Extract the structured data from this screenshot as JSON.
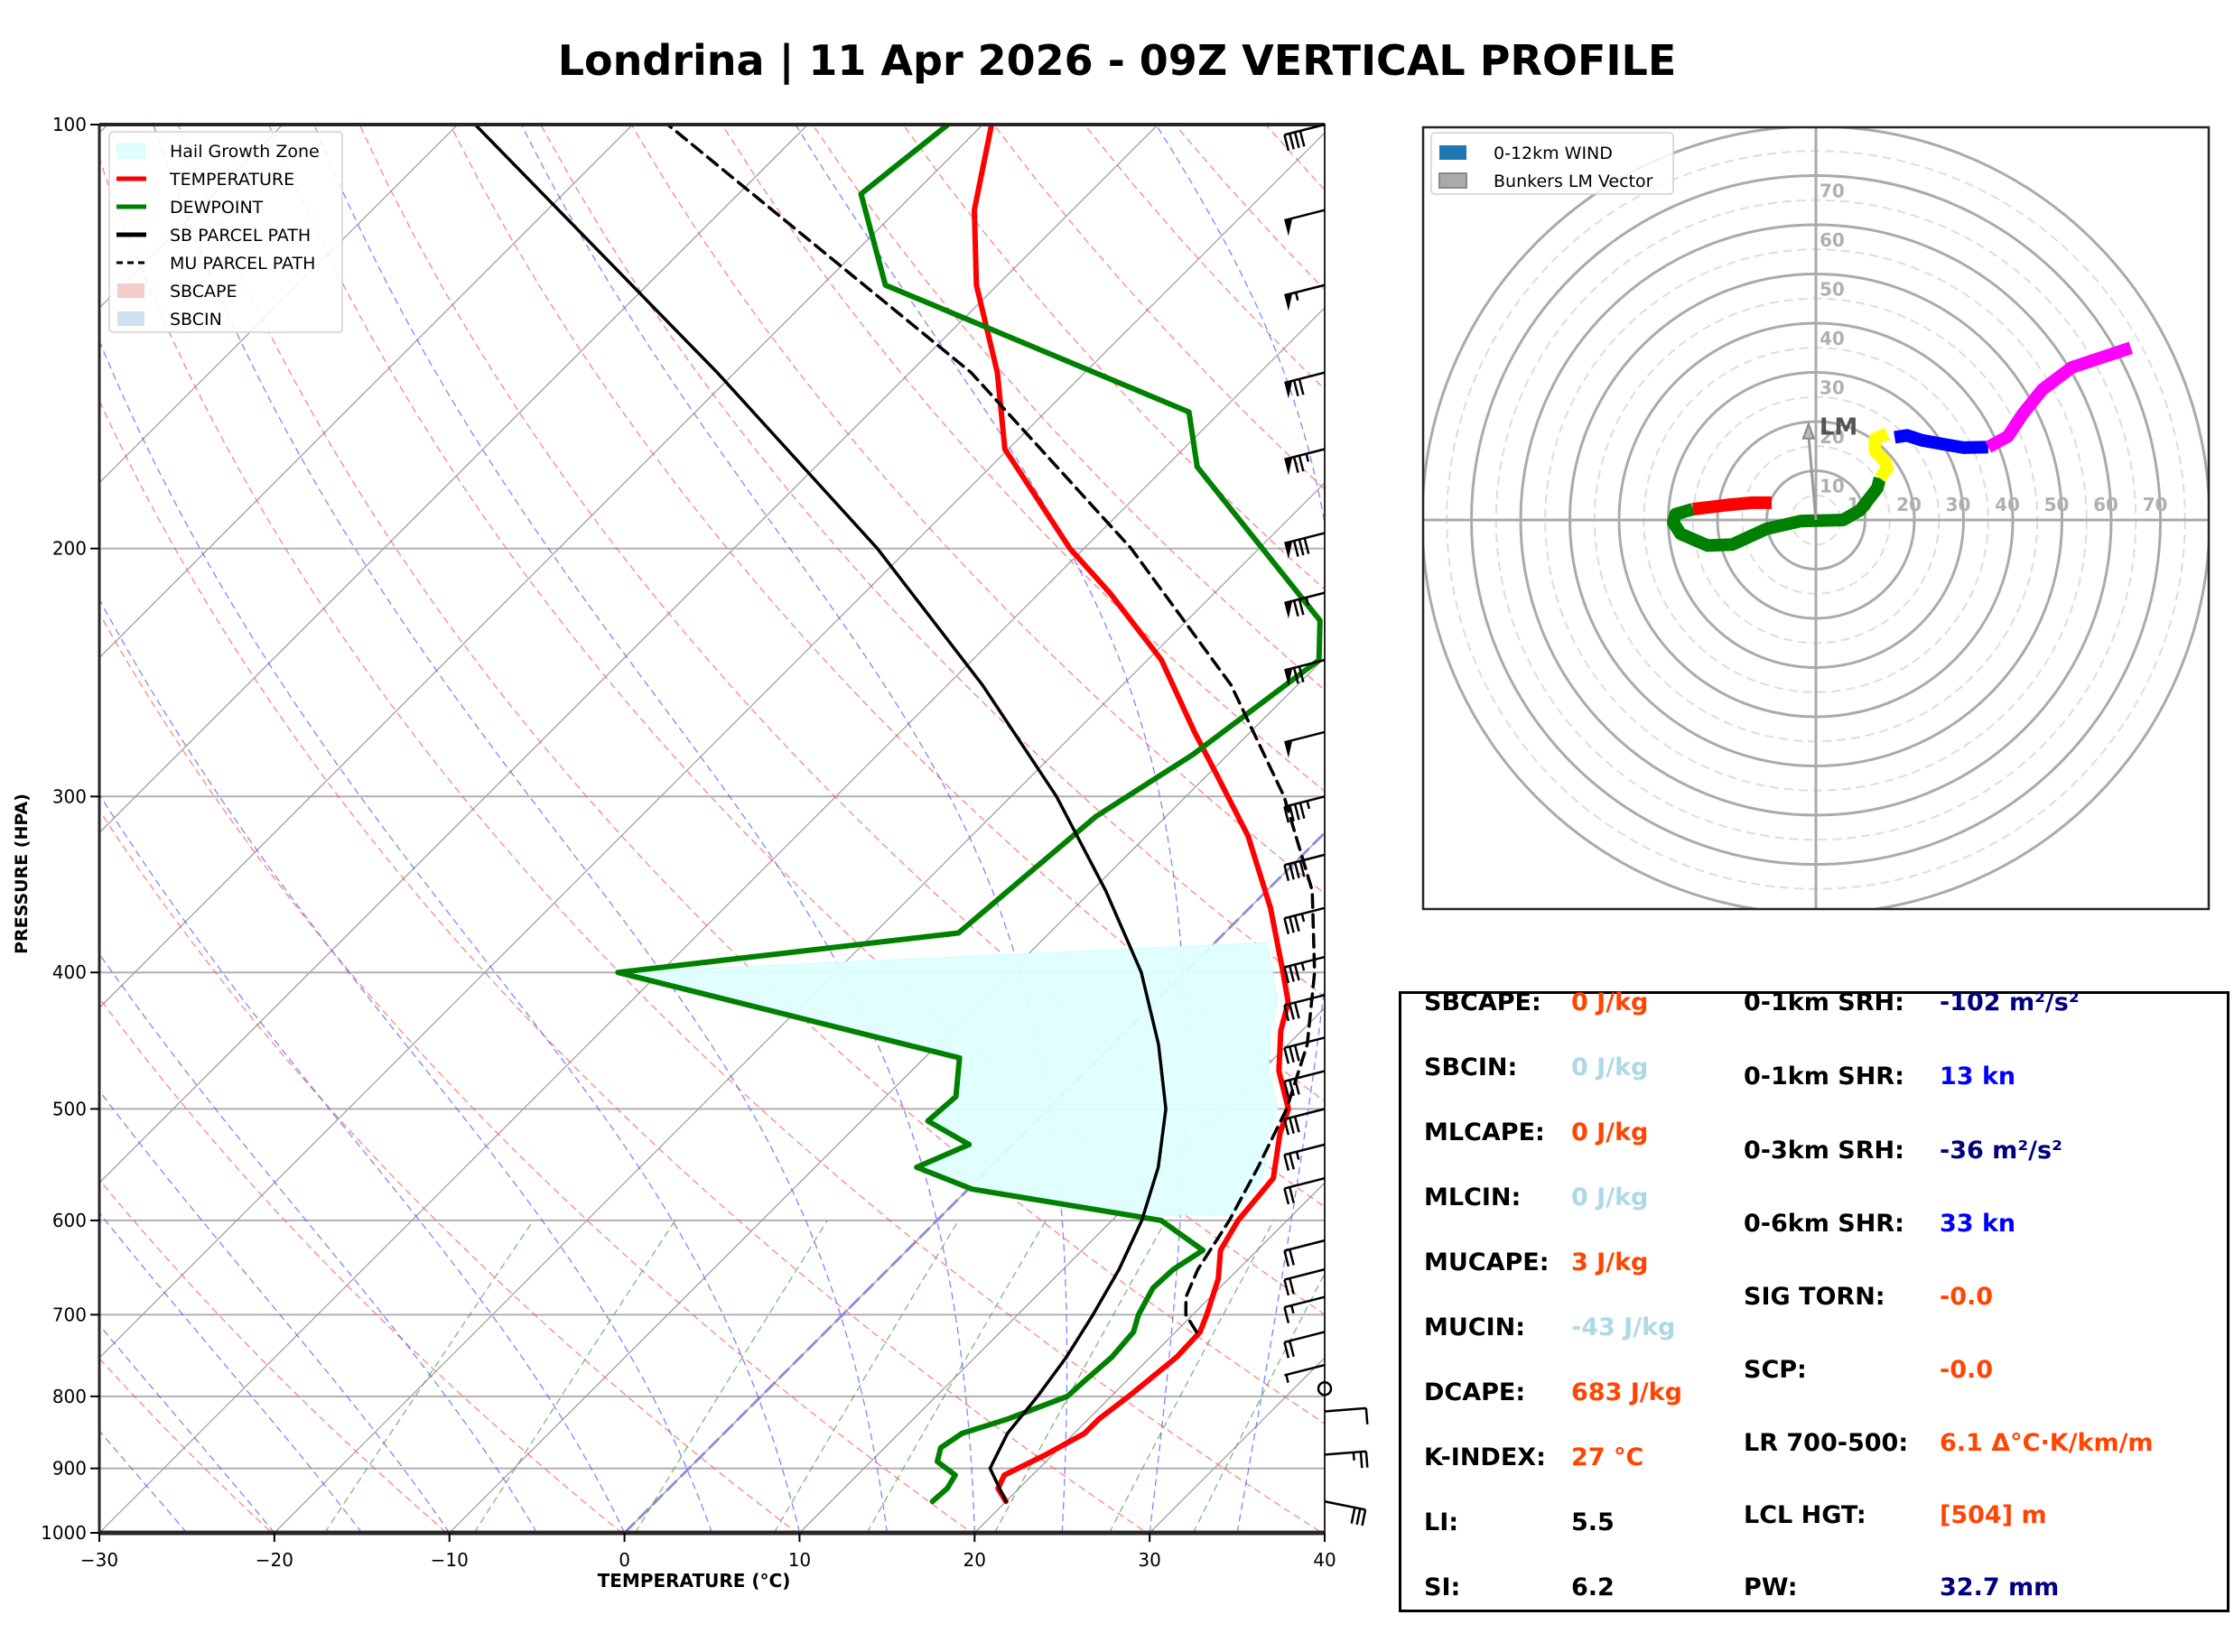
{
  "title": "Londrina | 11 Apr 2026 - 09Z VERTICAL PROFILE",
  "chart_data": [
    {
      "type": "line",
      "name": "skew-t",
      "title": "",
      "xlabel": "TEMPERATURE (°C)",
      "ylabel": "PRESSURE (HPA)",
      "xlim": [
        -30,
        40
      ],
      "ylim": [
        1000,
        100
      ],
      "yscale": "log",
      "xticks": [
        -30,
        -20,
        -10,
        0,
        10,
        20,
        30,
        40
      ],
      "xtick_labels": [
        "−30",
        "−20",
        "−10",
        "0",
        "10",
        "20",
        "30",
        "40"
      ],
      "yticks": [
        100,
        200,
        300,
        400,
        500,
        600,
        700,
        800,
        900,
        1000
      ],
      "ytick_labels": [
        "100",
        "200",
        "300",
        "400",
        "500",
        "600",
        "700",
        "800",
        "900",
        "1000"
      ],
      "grid": true,
      "legend_position": "top-left",
      "legend": [
        {
          "label": "Hail Growth Zone",
          "color": "#e0ffff",
          "kind": "patch"
        },
        {
          "label": "TEMPERATURE",
          "color": "#ff0000",
          "kind": "line"
        },
        {
          "label": "DEWPOINT",
          "color": "#008000",
          "kind": "line"
        },
        {
          "label": "SB PARCEL PATH",
          "color": "#000000",
          "kind": "line"
        },
        {
          "label": "MU PARCEL PATH",
          "color": "#000000",
          "kind": "dashed"
        },
        {
          "label": "SBCAPE",
          "color": "#f4cccc",
          "kind": "patch"
        },
        {
          "label": "SBCIN",
          "color": "#cfe0ee",
          "kind": "patch"
        }
      ],
      "series": [
        {
          "name": "TEMPERATURE",
          "color": "#ff0000",
          "points": [
            [
              950,
              20.0
            ],
            [
              930,
              18.8
            ],
            [
              910,
              18.4
            ],
            [
              880,
              19.6
            ],
            [
              850,
              20.6
            ],
            [
              830,
              20.6
            ],
            [
              800,
              21.0
            ],
            [
              780,
              21.2
            ],
            [
              750,
              21.5
            ],
            [
              720,
              21.4
            ],
            [
              700,
              20.8
            ],
            [
              660,
              19.4
            ],
            [
              630,
              17.9
            ],
            [
              600,
              17.2
            ],
            [
              560,
              16.8
            ],
            [
              520,
              14.6
            ],
            [
              500,
              13.7
            ],
            [
              470,
              11.0
            ],
            [
              440,
              8.8
            ],
            [
              420,
              7.6
            ],
            [
              400,
              5.6
            ],
            [
              360,
              1.2
            ],
            [
              320,
              -4.2
            ],
            [
              290,
              -9.4
            ],
            [
              270,
              -13.2
            ],
            [
              240,
              -19.2
            ],
            [
              215,
              -26.0
            ],
            [
              200,
              -30.8
            ],
            [
              170,
              -40.2
            ],
            [
              150,
              -45.0
            ],
            [
              130,
              -51.2
            ],
            [
              115,
              -55.6
            ],
            [
              100,
              -59.5
            ]
          ]
        },
        {
          "name": "DEWPOINT",
          "color": "#008000",
          "points": [
            [
              950,
              15.8
            ],
            [
              930,
              15.9
            ],
            [
              910,
              15.6
            ],
            [
              890,
              13.8
            ],
            [
              870,
              13.2
            ],
            [
              850,
              13.6
            ],
            [
              830,
              15.4
            ],
            [
              800,
              17.5
            ],
            [
              780,
              17.6
            ],
            [
              750,
              17.8
            ],
            [
              720,
              17.6
            ],
            [
              700,
              16.9
            ],
            [
              670,
              16.2
            ],
            [
              650,
              16.3
            ],
            [
              630,
              16.9
            ],
            [
              600,
              12.8
            ],
            [
              570,
              0.2
            ],
            [
              550,
              -4.2
            ],
            [
              530,
              -2.5
            ],
            [
              510,
              -6.2
            ],
            [
              490,
              -6.0
            ],
            [
              460,
              -8.0
            ],
            [
              400,
              -32.4
            ],
            [
              375,
              -15.2
            ],
            [
              310,
              -14.0
            ],
            [
              280,
              -12.0
            ],
            [
              240,
              -10.2
            ],
            [
              225,
              -12.4
            ],
            [
              175,
              -28.2
            ],
            [
              160,
              -31.8
            ],
            [
              130,
              -56.4
            ],
            [
              112,
              -63.0
            ],
            [
              100,
              -62.0
            ]
          ]
        },
        {
          "name": "SB PARCEL PATH",
          "color": "#000000",
          "points": [
            [
              950,
              20.0
            ],
            [
              900,
              17.2
            ],
            [
              850,
              16.2
            ],
            [
              800,
              15.8
            ],
            [
              750,
              15.2
            ],
            [
              700,
              14.3
            ],
            [
              650,
              13.2
            ],
            [
              600,
              11.7
            ],
            [
              550,
              9.6
            ],
            [
              500,
              6.7
            ],
            [
              450,
              2.6
            ],
            [
              400,
              -2.5
            ],
            [
              350,
              -9.2
            ],
            [
              300,
              -17.4
            ],
            [
              250,
              -28.0
            ],
            [
              200,
              -41.8
            ],
            [
              150,
              -61.0
            ],
            [
              100,
              -89.0
            ]
          ]
        },
        {
          "name": "MU PARCEL PATH",
          "color": "#000000",
          "dashed": true,
          "points": [
            [
              720,
              21.2
            ],
            [
              700,
              19.6
            ],
            [
              680,
              18.6
            ],
            [
              650,
              17.7
            ],
            [
              600,
              16.7
            ],
            [
              550,
              15.3
            ],
            [
              500,
              13.6
            ],
            [
              450,
              11.1
            ],
            [
              400,
              7.4
            ],
            [
              350,
              2.6
            ],
            [
              300,
              -4.4
            ],
            [
              250,
              -13.8
            ],
            [
              200,
              -27.3
            ],
            [
              150,
              -46.5
            ],
            [
              100,
              -78.0
            ]
          ]
        }
      ],
      "hail_growth_zone": {
        "p_top": 380,
        "p_bottom": 595,
        "color": "#e0ffff"
      },
      "wind_barbs": [
        {
          "p": 100,
          "speed_kt": 40
        },
        {
          "p": 115,
          "speed_kt": 50
        },
        {
          "p": 130,
          "speed_kt": 55
        },
        {
          "p": 150,
          "speed_kt": 70
        },
        {
          "p": 170,
          "speed_kt": 75
        },
        {
          "p": 195,
          "speed_kt": 80
        },
        {
          "p": 215,
          "speed_kt": 75
        },
        {
          "p": 240,
          "speed_kt": 70
        },
        {
          "p": 270,
          "speed_kt": 50
        },
        {
          "p": 300,
          "speed_kt": 45
        },
        {
          "p": 330,
          "speed_kt": 40
        },
        {
          "p": 360,
          "speed_kt": 35
        },
        {
          "p": 390,
          "speed_kt": 35
        },
        {
          "p": 415,
          "speed_kt": 30
        },
        {
          "p": 445,
          "speed_kt": 30
        },
        {
          "p": 470,
          "speed_kt": 30
        },
        {
          "p": 500,
          "speed_kt": 30
        },
        {
          "p": 530,
          "speed_kt": 25
        },
        {
          "p": 560,
          "speed_kt": 20
        },
        {
          "p": 620,
          "speed_kt": 20
        },
        {
          "p": 650,
          "speed_kt": 20
        },
        {
          "p": 680,
          "speed_kt": 15
        },
        {
          "p": 720,
          "speed_kt": 20
        },
        {
          "p": 760,
          "speed_kt": 5
        },
        {
          "p": 790,
          "speed_kt": 0
        },
        {
          "p": 820,
          "speed_kt": 10
        },
        {
          "p": 880,
          "speed_kt": 25
        },
        {
          "p": 950,
          "speed_kt": 30
        }
      ]
    },
    {
      "type": "line",
      "name": "hodograph",
      "title": "",
      "legend_position": "top-left",
      "legend": [
        {
          "label": "0-12km WIND",
          "color": "#1f77b4"
        },
        {
          "label": "Bunkers LM Vector",
          "color": "#aaaaaa"
        }
      ],
      "ring_labels_x": [
        "10",
        "20",
        "30",
        "40",
        "50",
        "60",
        "70"
      ],
      "ring_labels_y": [
        "10",
        "20",
        "30",
        "40",
        "50",
        "60",
        "70"
      ],
      "rings_kt": [
        10,
        20,
        30,
        40,
        50,
        60,
        70,
        80
      ],
      "xlim": [
        -80,
        80
      ],
      "ylim": [
        -80,
        80
      ],
      "segments": [
        {
          "name": "0-1km",
          "color": "#ff0000",
          "points": [
            [
              -9,
              3.5
            ],
            [
              -13,
              3.5
            ],
            [
              -17.5,
              3.1
            ],
            [
              -25,
              2.2
            ]
          ]
        },
        {
          "name": "1-3km",
          "color": "#008000",
          "points": [
            [
              -25,
              2.2
            ],
            [
              -28.5,
              1.2
            ],
            [
              -29,
              -0.5
            ],
            [
              -27.5,
              -2.8
            ],
            [
              -22,
              -5.2
            ],
            [
              -17,
              -5
            ],
            [
              -10,
              -1.8
            ],
            [
              -3,
              -0.2
            ],
            [
              5.5,
              0
            ],
            [
              9,
              2
            ],
            [
              12.5,
              6.5
            ],
            [
              13,
              8.5
            ]
          ]
        },
        {
          "name": "3-6km",
          "color": "#ffff00",
          "points": [
            [
              13,
              8.5
            ],
            [
              14.5,
              10.5
            ],
            [
              14,
              12
            ],
            [
              12,
              14
            ],
            [
              12,
              16.5
            ],
            [
              14.5,
              17.5
            ]
          ]
        },
        {
          "name": "6-9km",
          "color": "#0000ff",
          "points": [
            [
              16,
              16.8
            ],
            [
              18.5,
              17.2
            ],
            [
              21.5,
              16.2
            ],
            [
              26,
              15.4
            ],
            [
              30,
              14.7
            ],
            [
              35,
              14.8
            ]
          ]
        },
        {
          "name": "9-12km",
          "color": "#ff00ff",
          "points": [
            [
              35,
              14.8
            ],
            [
              39,
              17
            ],
            [
              42,
              21.5
            ],
            [
              46,
              26.5
            ],
            [
              52,
              31
            ],
            [
              58,
              33
            ],
            [
              64,
              35
            ]
          ]
        }
      ],
      "bunkers_lm": {
        "u": -1.5,
        "v": 19.5,
        "label": "LM"
      }
    }
  ],
  "stats": {
    "left": [
      {
        "label": "SBCAPE:",
        "value": "0 J/kg",
        "color": "#ff4500"
      },
      {
        "label": "SBCIN:",
        "value": "0 J/kg",
        "color": "#add8e6"
      },
      {
        "label": "MLCAPE:",
        "value": "0 J/kg",
        "color": "#ff4500"
      },
      {
        "label": "MLCIN:",
        "value": "0 J/kg",
        "color": "#add8e6"
      },
      {
        "label": "MUCAPE:",
        "value": "3 J/kg",
        "color": "#ff4500"
      },
      {
        "label": "MUCIN:",
        "value": "-43 J/kg",
        "color": "#add8e6"
      },
      {
        "label": "DCAPE:",
        "value": "683 J/kg",
        "color": "#ff4500"
      },
      {
        "label": "K-INDEX:",
        "value": "27 °C",
        "color": "#ff4500"
      },
      {
        "label": "LI:",
        "value": "5.5",
        "color": "#000000"
      },
      {
        "label": "SI:",
        "value": "6.2",
        "color": "#000000"
      }
    ],
    "right": [
      {
        "label": "0-1km SRH:",
        "value": "-102 m²/s²",
        "color": "#000080"
      },
      {
        "label": "0-1km SHR:",
        "value": "13 kn",
        "color": "#0000ff"
      },
      {
        "label": "0-3km SRH:",
        "value": "-36 m²/s²",
        "color": "#000080"
      },
      {
        "label": "0-6km SHR:",
        "value": "33 kn",
        "color": "#0000ff"
      },
      {
        "label": "SIG TORN:",
        "value": "-0.0",
        "color": "#ff4500"
      },
      {
        "label": "SCP:",
        "value": "-0.0",
        "color": "#ff4500"
      },
      {
        "label": "LR 700-500:",
        "value": "6.1 Δ°C·K/km/m",
        "color": "#ff4500"
      },
      {
        "label": "LCL HGT:",
        "value": "[504] m",
        "color": "#ff4500"
      },
      {
        "label": "PW:",
        "value": "32.7 mm",
        "color": "#000080"
      }
    ]
  }
}
